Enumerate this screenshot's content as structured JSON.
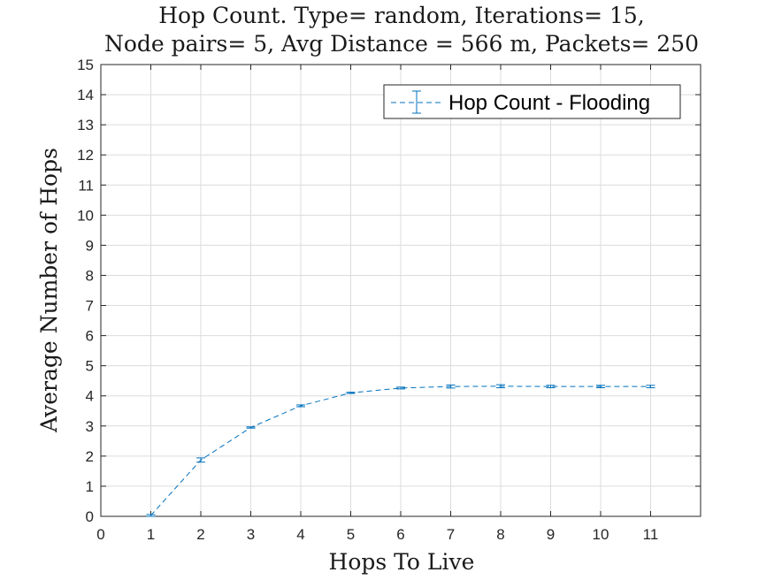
{
  "chart_data": {
    "type": "line",
    "title_lines": [
      "Hop Count. Type= random, Iterations= 15,",
      "Node pairs= 5, Avg Distance = 566 m, Packets= 250"
    ],
    "xlabel": "Hops To Live",
    "ylabel": "Average Number of Hops",
    "xlim": [
      0,
      12
    ],
    "ylim": [
      0,
      15
    ],
    "xticks": [
      "0",
      "1",
      "2",
      "3",
      "4",
      "5",
      "6",
      "7",
      "8",
      "9",
      "10",
      "11"
    ],
    "yticks": [
      "0",
      "1",
      "2",
      "3",
      "4",
      "5",
      "6",
      "7",
      "8",
      "9",
      "10",
      "11",
      "12",
      "13",
      "14",
      "15"
    ],
    "grid": true,
    "legend_position": "top-right",
    "series": [
      {
        "name": "Hop Count - Flooding",
        "color": "#0072BD",
        "line_style": "dashed",
        "x": [
          1,
          2,
          3,
          4,
          5,
          6,
          7,
          8,
          9,
          10,
          11
        ],
        "y": [
          0.03,
          1.87,
          2.95,
          3.67,
          4.1,
          4.26,
          4.31,
          4.32,
          4.31,
          4.31,
          4.31
        ],
        "error": [
          0.03,
          0.07,
          0.02,
          0.03,
          0.02,
          0.03,
          0.05,
          0.05,
          0.04,
          0.04,
          0.04
        ]
      }
    ]
  }
}
